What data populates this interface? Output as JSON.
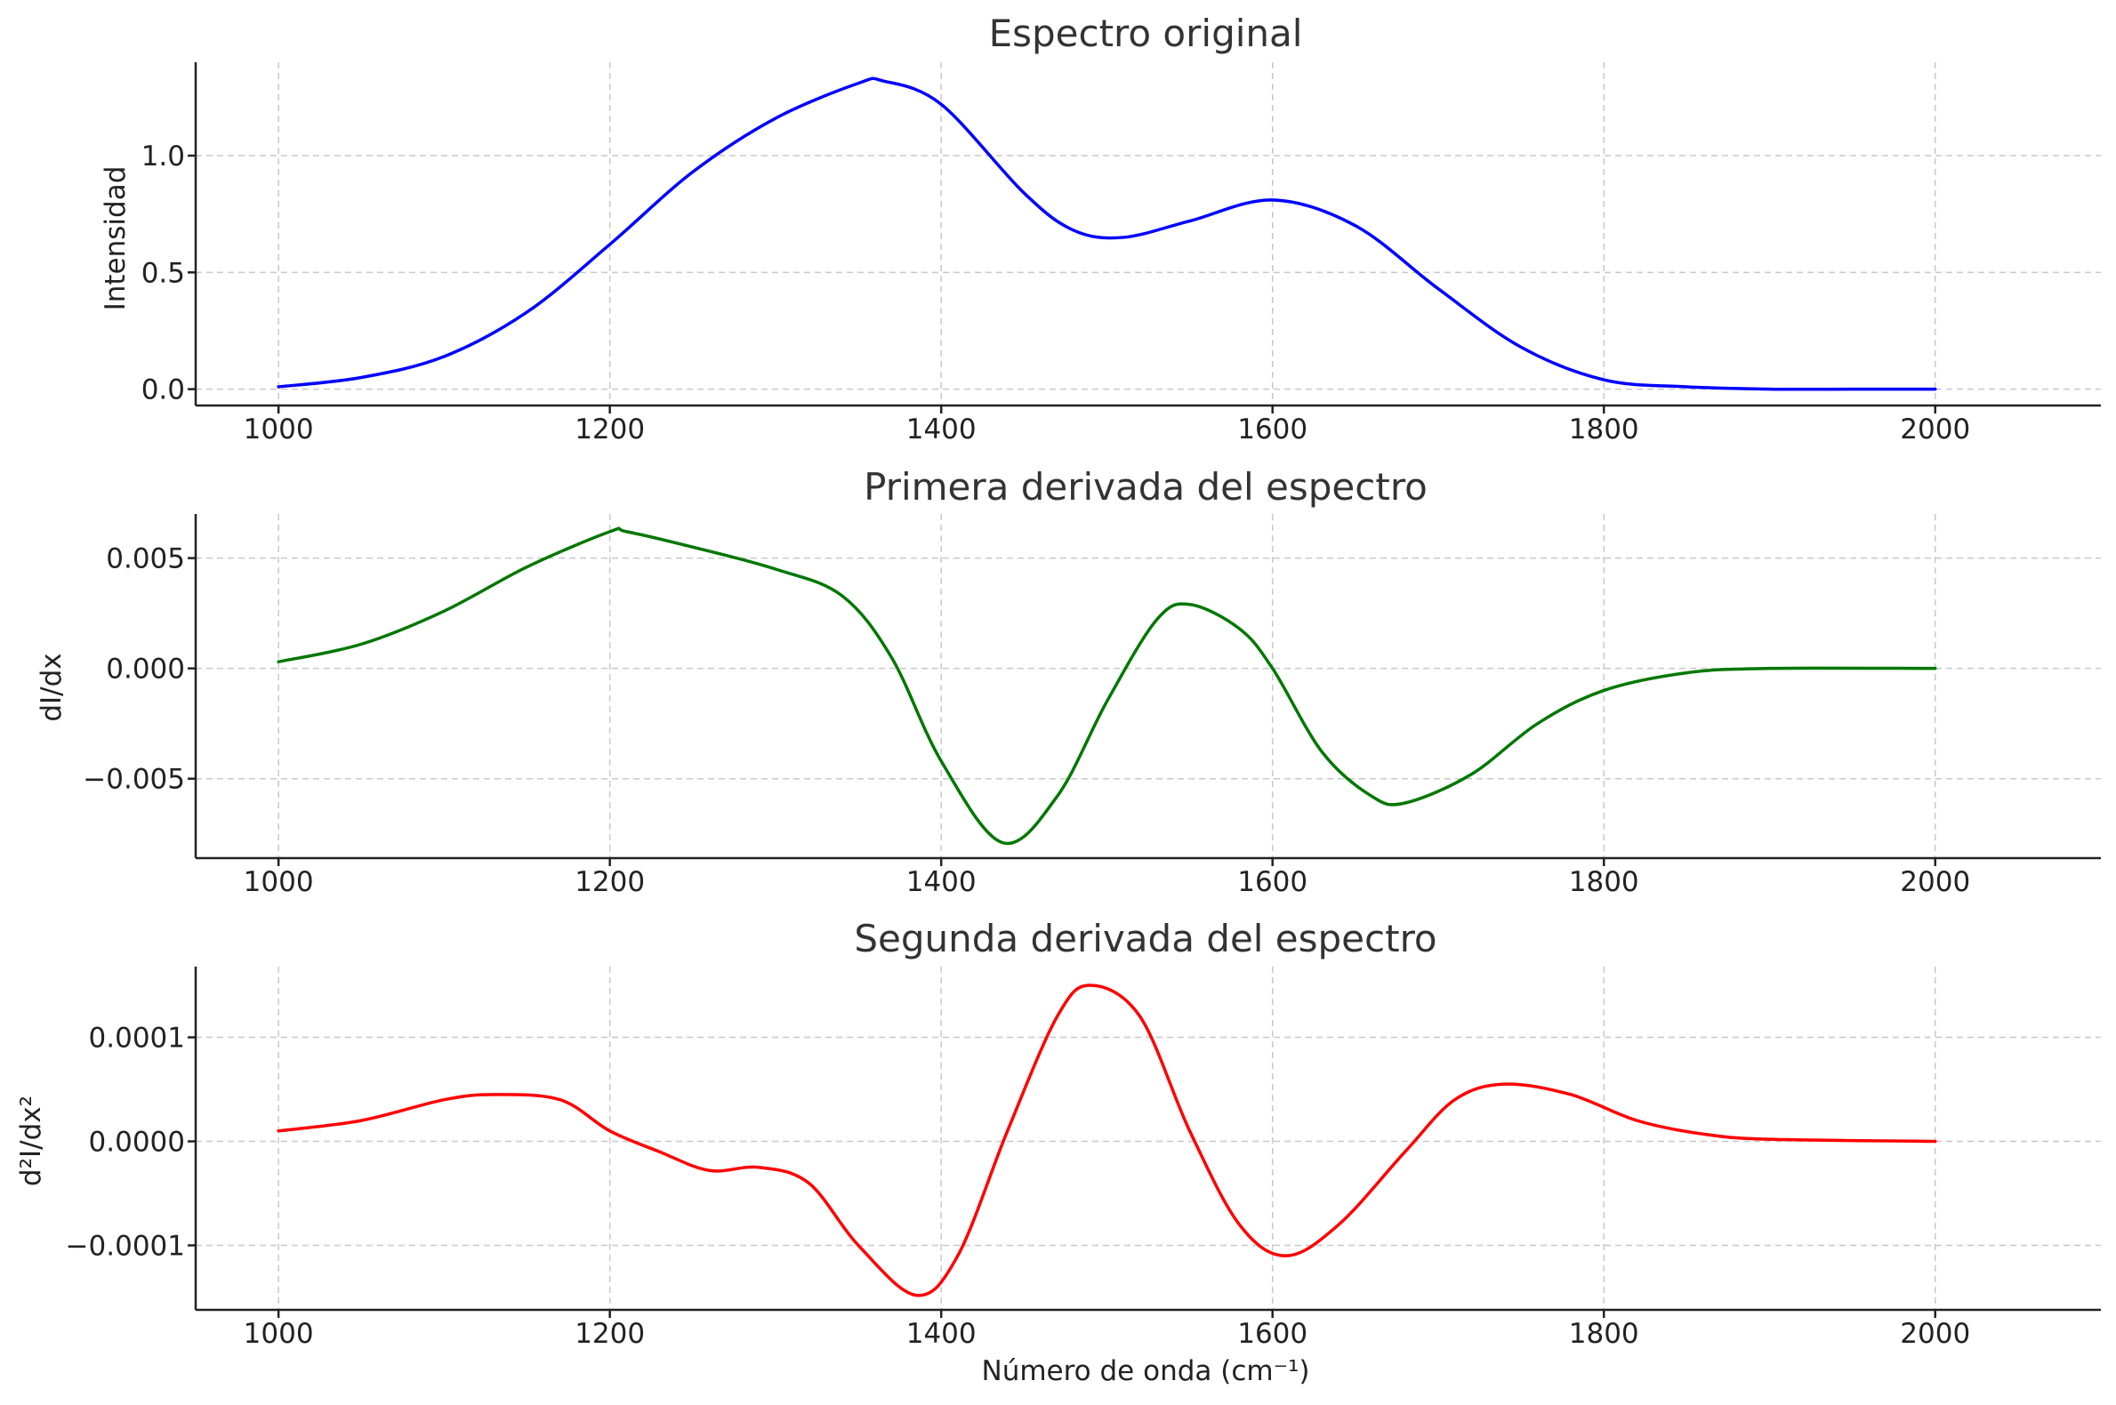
{
  "chart_data": [
    {
      "type": "line",
      "title": "Espectro original",
      "xlabel": "",
      "ylabel": "Intensidad",
      "xlim": [
        950,
        2100
      ],
      "ylim": [
        -0.07,
        1.4
      ],
      "xticks": [
        1000,
        1200,
        1400,
        1600,
        1800,
        2000
      ],
      "xtick_labels": [
        "1000",
        "1200",
        "1400",
        "1600",
        "1800",
        "2000"
      ],
      "yticks": [
        0.0,
        0.5,
        1.0
      ],
      "ytick_labels": [
        "0.0",
        "0.5",
        "1.0"
      ],
      "grid": true,
      "series": [
        {
          "color": "#0000ff",
          "x": [
            1000,
            1050,
            1100,
            1150,
            1200,
            1250,
            1300,
            1350,
            1365,
            1400,
            1450,
            1480,
            1510,
            1550,
            1600,
            1650,
            1700,
            1750,
            1800,
            1850,
            1900,
            1950,
            2000
          ],
          "y": [
            0.01,
            0.05,
            0.14,
            0.33,
            0.62,
            0.93,
            1.16,
            1.31,
            1.32,
            1.22,
            0.84,
            0.68,
            0.65,
            0.72,
            0.81,
            0.7,
            0.43,
            0.18,
            0.04,
            0.01,
            0.0,
            0.0,
            0.0
          ]
        }
      ]
    },
    {
      "type": "line",
      "title": "Primera derivada del espectro",
      "xlabel": "",
      "ylabel": "dI/dx",
      "xlim": [
        950,
        2100
      ],
      "ylim": [
        -0.0086,
        0.007
      ],
      "xticks": [
        1000,
        1200,
        1400,
        1600,
        1800,
        2000
      ],
      "xtick_labels": [
        "1000",
        "1200",
        "1400",
        "1600",
        "1800",
        "2000"
      ],
      "yticks": [
        -0.005,
        0.0,
        0.005
      ],
      "ytick_labels": [
        "−0.005",
        "0.000",
        "0.005"
      ],
      "grid": true,
      "series": [
        {
          "color": "#007700",
          "x": [
            1000,
            1050,
            1100,
            1150,
            1200,
            1210,
            1250,
            1300,
            1340,
            1370,
            1400,
            1437,
            1470,
            1500,
            1530,
            1550,
            1580,
            1600,
            1630,
            1660,
            1680,
            1720,
            1760,
            1800,
            1850,
            1900,
            2000
          ],
          "y": [
            0.0003,
            0.0011,
            0.0026,
            0.0046,
            0.0062,
            0.0062,
            0.0055,
            0.0045,
            0.0033,
            0.0005,
            -0.0042,
            -0.0079,
            -0.0058,
            -0.0015,
            0.0022,
            0.0029,
            0.0018,
            0.0,
            -0.0038,
            -0.0058,
            -0.0061,
            -0.0048,
            -0.0025,
            -0.001,
            -0.0002,
            0.0,
            0.0
          ]
        }
      ]
    },
    {
      "type": "line",
      "title": "Segunda derivada del espectro",
      "xlabel": "Número de onda (cm⁻¹)",
      "ylabel": "d²I/dx²",
      "xlim": [
        950,
        2100
      ],
      "ylim": [
        -0.000162,
        0.000168
      ],
      "xticks": [
        1000,
        1200,
        1400,
        1600,
        1800,
        2000
      ],
      "xtick_labels": [
        "1000",
        "1200",
        "1400",
        "1600",
        "1800",
        "2000"
      ],
      "yticks": [
        -0.0001,
        0.0,
        0.0001
      ],
      "ytick_labels": [
        "−0.0001",
        "0.0000",
        "0.0001"
      ],
      "grid": true,
      "series": [
        {
          "color": "#ff0000",
          "x": [
            1000,
            1050,
            1100,
            1130,
            1170,
            1200,
            1230,
            1260,
            1290,
            1320,
            1350,
            1385,
            1410,
            1440,
            1470,
            1490,
            1520,
            1550,
            1580,
            1608,
            1640,
            1680,
            1710,
            1740,
            1780,
            1820,
            1860,
            1900,
            2000
          ],
          "y": [
            1e-05,
            2e-05,
            4e-05,
            4.5e-05,
            4e-05,
            1e-05,
            -1e-05,
            -2.8e-05,
            -2.5e-05,
            -4e-05,
            -0.0001,
            -0.000148,
            -0.00011,
            1e-05,
            0.00012,
            0.00015,
            0.00012,
            1e-05,
            -8e-05,
            -0.00011,
            -8e-05,
            -1e-05,
            4e-05,
            5.5e-05,
            4.5e-05,
            2e-05,
            7e-06,
            2e-06,
            0.0
          ]
        }
      ]
    }
  ]
}
